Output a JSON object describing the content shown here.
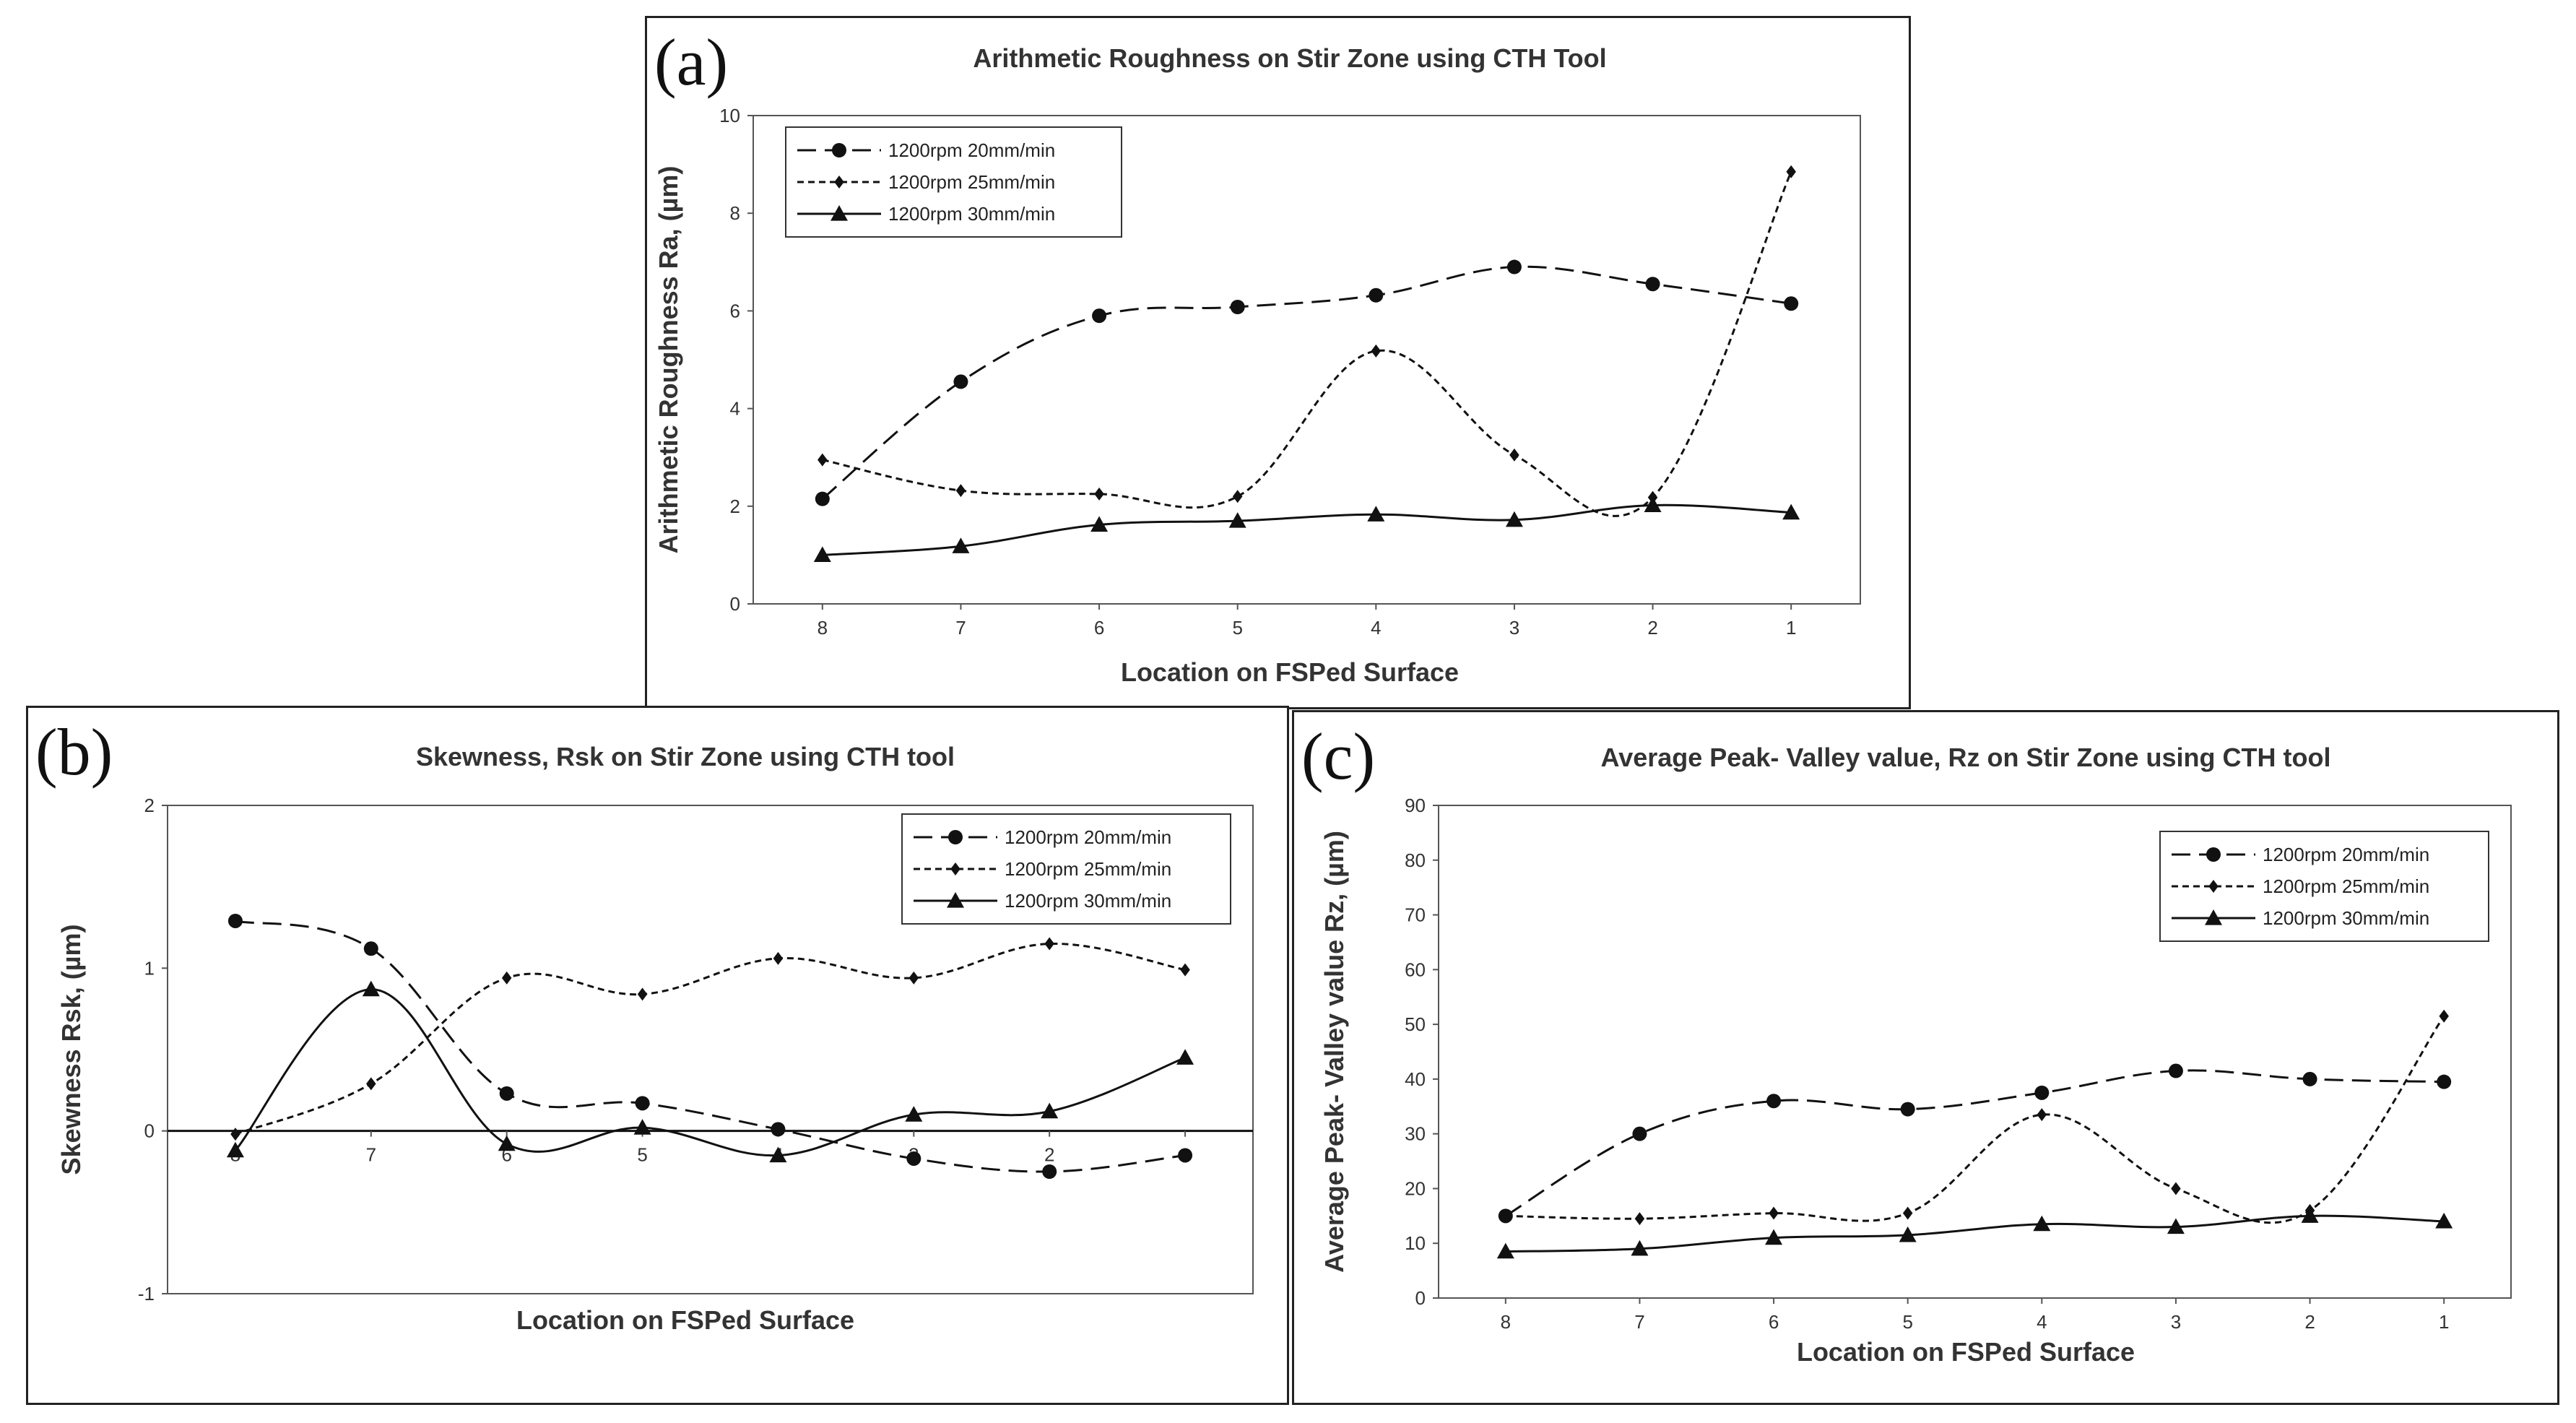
{
  "chart_data": [
    {
      "type": "line",
      "panel_label": "(a)",
      "title": "Arithmetic Roughness on Stir Zone using CTH Tool",
      "xlabel": "Location on FSPed Surface",
      "ylabel": "Arithmetic Roughness  Ra, (µm)",
      "categories": [
        "8",
        "7",
        "6",
        "5",
        "4",
        "3",
        "2",
        "1"
      ],
      "ylim": [
        0,
        10
      ],
      "yticks": [
        "0",
        "2",
        "4",
        "6",
        "8",
        "10"
      ],
      "legend_position": "top-left",
      "series": [
        {
          "name": "1200rpm 20mm/min",
          "marker": "circle",
          "dash": "long",
          "values": [
            2.15,
            4.55,
            5.9,
            6.08,
            6.32,
            6.9,
            6.55,
            6.15
          ]
        },
        {
          "name": "1200rpm 25mm/min",
          "marker": "diamond",
          "dash": "short",
          "values": [
            2.95,
            2.32,
            2.25,
            2.2,
            5.18,
            3.05,
            2.18,
            8.85
          ]
        },
        {
          "name": "1200rpm 30mm/min",
          "marker": "triangle",
          "dash": "solid",
          "values": [
            1.0,
            1.18,
            1.62,
            1.7,
            1.83,
            1.72,
            2.02,
            1.87
          ]
        }
      ]
    },
    {
      "type": "line",
      "panel_label": "(b)",
      "title": "Skewness, Rsk on Stir Zone using CTH tool",
      "xlabel": "Location on FSPed Surface",
      "ylabel": "Skewness Rsk, (µm)",
      "categories": [
        "8",
        "7",
        "6",
        "5",
        "4",
        "3",
        "2",
        "1"
      ],
      "ylim": [
        -1,
        2
      ],
      "yticks": [
        "-1",
        "0",
        "1",
        "2"
      ],
      "legend_position": "top-right",
      "series": [
        {
          "name": "1200rpm 20mm/min",
          "marker": "circle",
          "dash": "long",
          "values": [
            1.29,
            1.12,
            0.23,
            0.17,
            0.01,
            -0.17,
            -0.25,
            -0.15
          ]
        },
        {
          "name": "1200rpm 25mm/min",
          "marker": "diamond",
          "dash": "short",
          "values": [
            -0.02,
            0.29,
            0.94,
            0.84,
            1.06,
            0.94,
            1.15,
            0.99
          ]
        },
        {
          "name": "1200rpm 30mm/min",
          "marker": "triangle",
          "dash": "solid",
          "values": [
            -0.12,
            0.87,
            -0.08,
            0.02,
            -0.15,
            0.1,
            0.12,
            0.45
          ]
        }
      ]
    },
    {
      "type": "line",
      "panel_label": "(c)",
      "title": "Average Peak- Valley value, Rz  on Stir Zone using CTH tool",
      "xlabel": "Location on FSPed Surface",
      "ylabel": "Average Peak- Valley value Rz, (µm)",
      "categories": [
        "8",
        "7",
        "6",
        "5",
        "4",
        "3",
        "2",
        "1"
      ],
      "ylim": [
        0,
        90
      ],
      "yticks": [
        "0",
        "10",
        "20",
        "30",
        "40",
        "50",
        "60",
        "70",
        "80",
        "90"
      ],
      "legend_position": "top-right",
      "series": [
        {
          "name": "1200rpm 20mm/min",
          "marker": "circle",
          "dash": "long",
          "values": [
            15,
            30,
            36,
            34.5,
            37.5,
            41.5,
            40,
            39.5
          ]
        },
        {
          "name": "1200rpm 25mm/min",
          "marker": "diamond",
          "dash": "short",
          "values": [
            15,
            14.5,
            15.5,
            15.5,
            33.5,
            20,
            16,
            51.5
          ]
        },
        {
          "name": "1200rpm 30mm/min",
          "marker": "triangle",
          "dash": "solid",
          "values": [
            8.5,
            9,
            11,
            11.5,
            13.5,
            13,
            15,
            14
          ]
        }
      ]
    }
  ]
}
